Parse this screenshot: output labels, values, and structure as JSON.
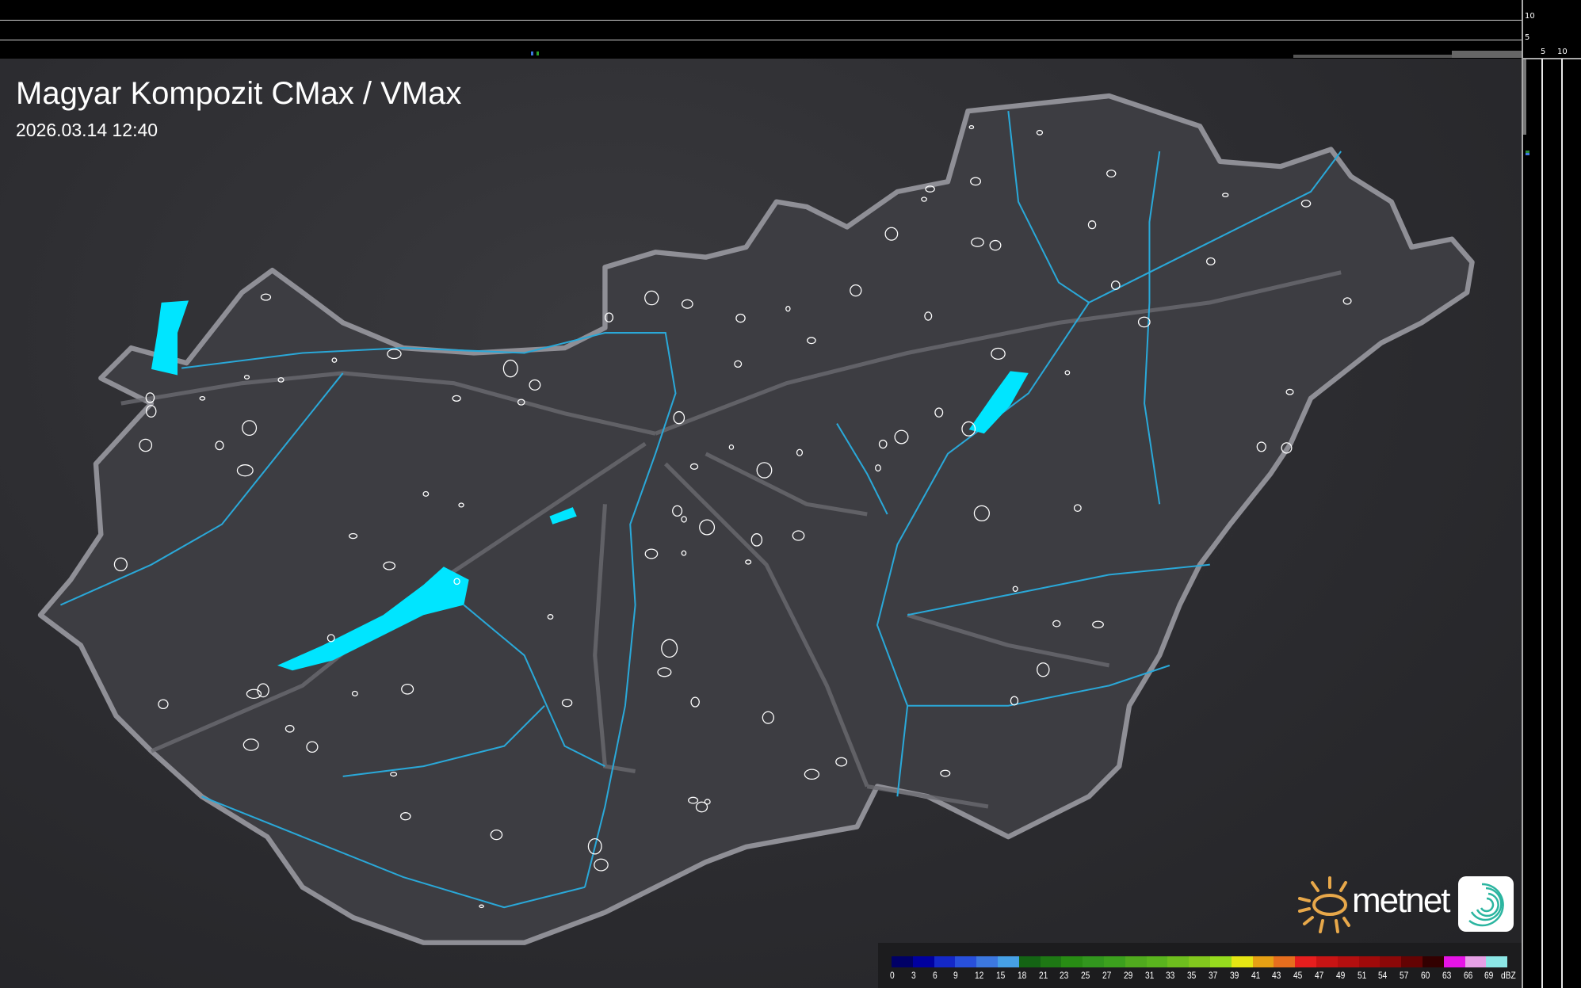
{
  "title": "Magyar Kompozit CMax / VMax",
  "datetime": "2026.03.14 12:40",
  "profile_axes": {
    "top_ticks": [
      "10",
      "5"
    ],
    "right_ticks": [
      "5",
      "10"
    ]
  },
  "legend": {
    "unit": "dBZ",
    "labels": [
      "0",
      "3",
      "6",
      "9",
      "12",
      "15",
      "18",
      "21",
      "23",
      "25",
      "27",
      "29",
      "31",
      "33",
      "35",
      "37",
      "39",
      "41",
      "43",
      "45",
      "47",
      "49",
      "51",
      "54",
      "57",
      "60",
      "63",
      "66",
      "69"
    ],
    "colors": [
      "#000066",
      "#0000a0",
      "#1428c8",
      "#2850dc",
      "#3c78e0",
      "#46a0e6",
      "#146414",
      "#1e7814",
      "#288c14",
      "#32961e",
      "#3ca01e",
      "#50aa1e",
      "#5ab41e",
      "#6ebe1e",
      "#82c81e",
      "#96dc1e",
      "#e6e614",
      "#e6a014",
      "#e66e1e",
      "#e61e1e",
      "#c81414",
      "#b40f0f",
      "#a00a0a",
      "#8c0808",
      "#640303",
      "#320000",
      "#e614e6",
      "#e6a0e6",
      "#8ce6e6"
    ]
  },
  "branding": {
    "logo_text": "metnet"
  },
  "colors": {
    "lakes": "#00e5ff",
    "rivers": "#2aa8d8",
    "border": "#9a9aa0",
    "settlements": "#ffffff"
  }
}
